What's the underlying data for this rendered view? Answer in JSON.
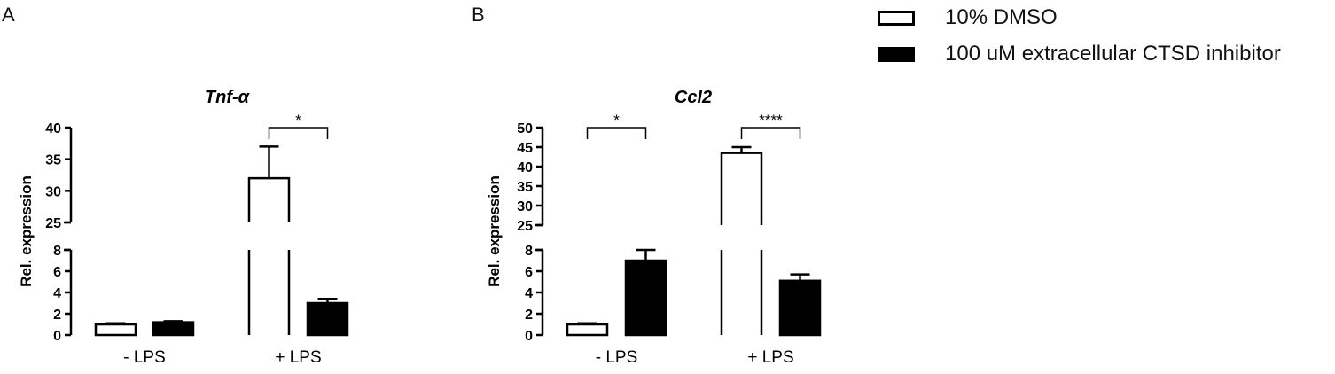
{
  "panel_letters": [
    "A",
    "B"
  ],
  "legend": {
    "items": [
      {
        "label": "10% DMSO",
        "style": "open"
      },
      {
        "label": "100 uM extracellular CTSD inhibitor",
        "style": "filled"
      }
    ]
  },
  "chart_data": [
    {
      "type": "bar",
      "panel": "A",
      "title": "Tnf-α",
      "ylabel": "Rel. expression",
      "categories": [
        "- LPS",
        "+ LPS"
      ],
      "y_axis_break": {
        "lower": [
          0,
          8
        ],
        "upper": [
          25,
          40
        ]
      },
      "yticks_lower": [
        "0",
        "2",
        "4",
        "6",
        "8"
      ],
      "yticks_upper": [
        "25",
        "30",
        "35",
        "40"
      ],
      "series": [
        {
          "name": "10% DMSO",
          "values": [
            1.0,
            32.0
          ],
          "errors": [
            0.1,
            5.0
          ],
          "fill": "#ffffff"
        },
        {
          "name": "100 uM extracellular CTSD inhibitor",
          "values": [
            1.2,
            3.0
          ],
          "errors": [
            0.1,
            0.4
          ],
          "fill": "#000000"
        }
      ],
      "significance": [
        {
          "category": "+ LPS",
          "label": "*"
        }
      ]
    },
    {
      "type": "bar",
      "panel": "B",
      "title": "Ccl2",
      "ylabel": "Rel. expression",
      "categories": [
        "- LPS",
        "+ LPS"
      ],
      "y_axis_break": {
        "lower": [
          0,
          8
        ],
        "upper": [
          25,
          50
        ]
      },
      "yticks_lower": [
        "0",
        "2",
        "4",
        "6",
        "8"
      ],
      "yticks_upper": [
        "25",
        "30",
        "35",
        "40",
        "45",
        "50"
      ],
      "series": [
        {
          "name": "10% DMSO",
          "values": [
            1.0,
            43.5
          ],
          "errors": [
            0.1,
            1.5
          ],
          "fill": "#ffffff"
        },
        {
          "name": "100 uM extracellular CTSD inhibitor",
          "values": [
            7.0,
            5.1
          ],
          "errors": [
            1.6,
            0.6
          ],
          "fill": "#000000"
        }
      ],
      "significance": [
        {
          "category": "- LPS",
          "label": "*"
        },
        {
          "category": "+ LPS",
          "label": "****"
        }
      ]
    }
  ]
}
